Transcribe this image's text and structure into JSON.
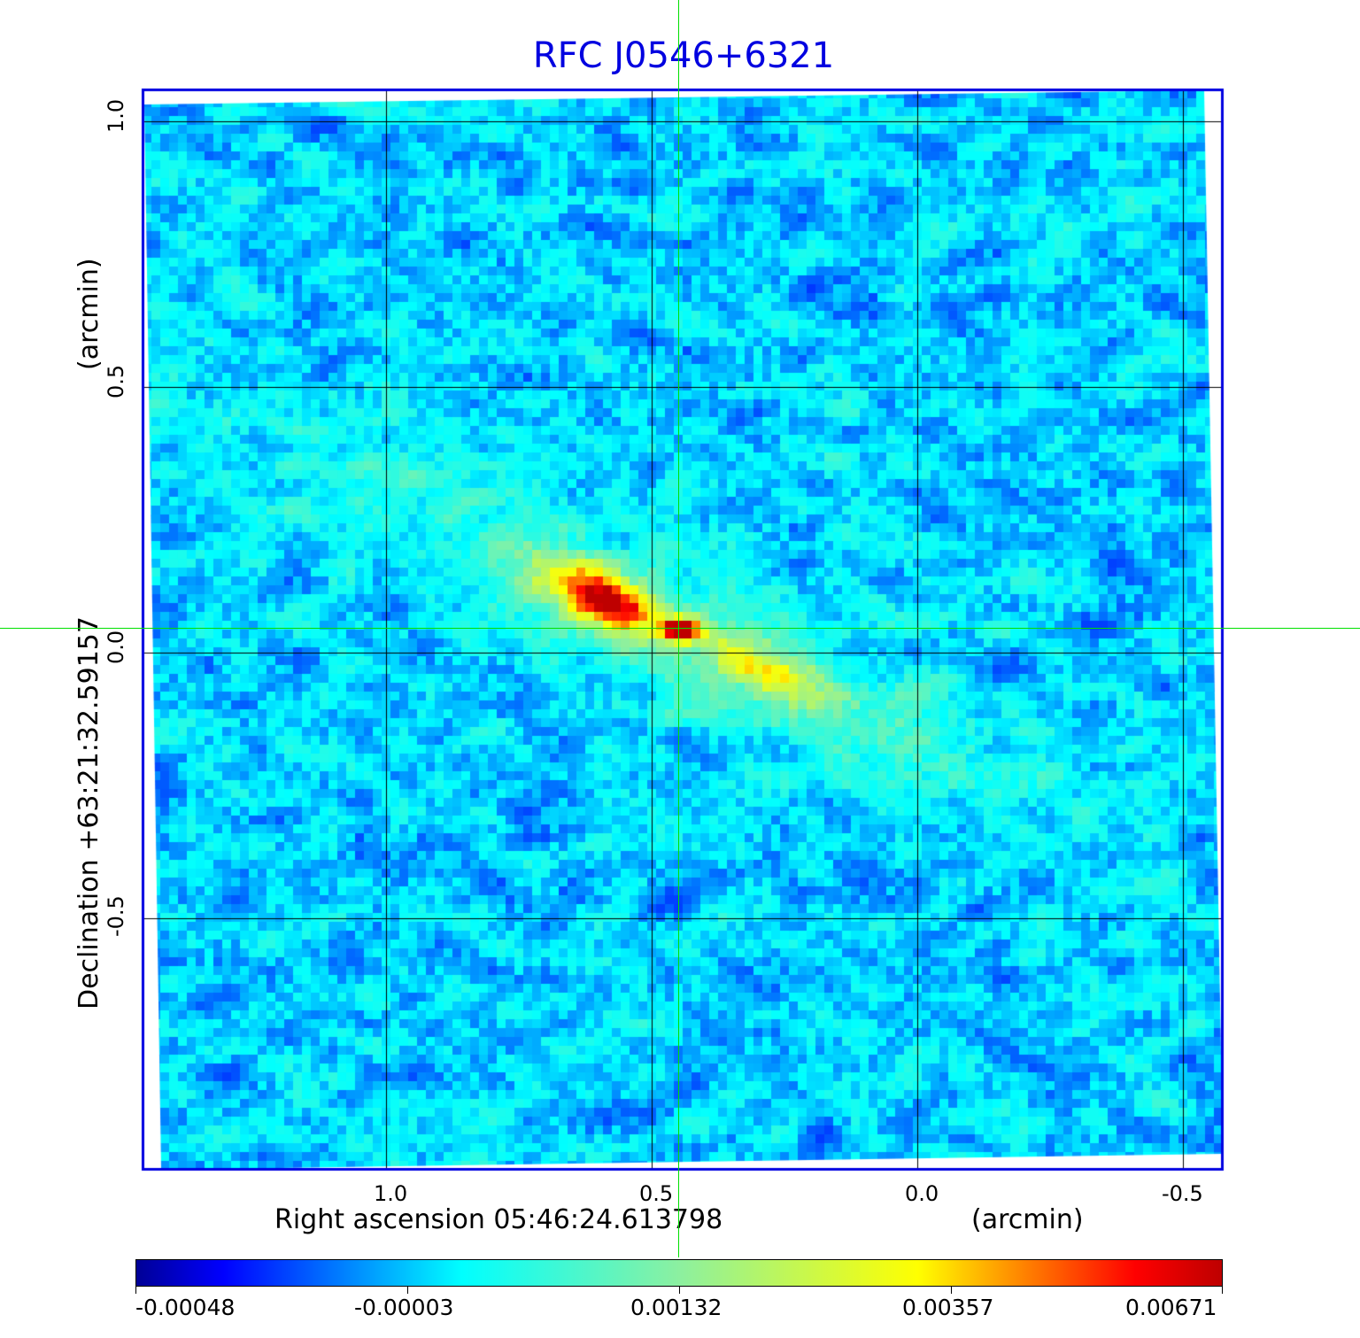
{
  "chart_data": {
    "type": "heatmap",
    "title": "RFC J0546+6321",
    "xlabel": "Right ascension  05:46:24.613798",
    "xunit": "(arcmin)",
    "ylabel": "Declination  +63:21:32.59157",
    "yunit": "(arcmin)",
    "x_ticks": [
      "1.0",
      "0.5",
      "0.0",
      "-0.5"
    ],
    "y_ticks": [
      "1.0",
      "0.5",
      "0.0",
      "-0.5"
    ],
    "xlim": [
      1.46,
      -0.58
    ],
    "ylim": [
      -0.97,
      1.06
    ],
    "grid": true,
    "colormap": "jet",
    "colorbar": {
      "ticks": [
        "-0.00048",
        "-0.00003",
        "0.00132",
        "0.00357",
        "0.00671"
      ],
      "range": [
        -0.00048,
        0.00671
      ]
    },
    "features": [
      {
        "name": "core",
        "ra_offset": 0.49,
        "dec_offset": 0.05,
        "value": 0.00671
      },
      {
        "name": "jet-northeast",
        "ra_offset": 0.62,
        "dec_offset": 0.11,
        "value": 0.0036
      },
      {
        "name": "jet-southwest",
        "ra_offset": 0.3,
        "dec_offset": -0.04,
        "value": 0.003
      }
    ]
  },
  "colors": {
    "title": "#0000e0",
    "frame": "#0000e0",
    "crosshair": "#00e000",
    "grid": "#000000"
  }
}
